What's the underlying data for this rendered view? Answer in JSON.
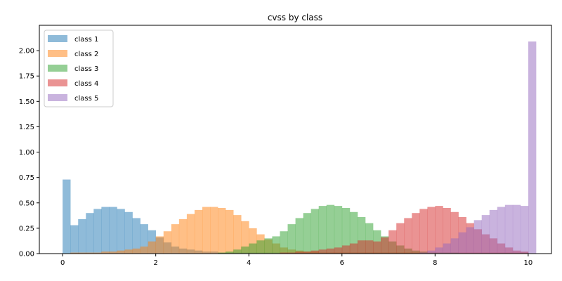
{
  "chart_data": {
    "type": "histogram",
    "title": "cvss by class",
    "xlabel": "",
    "ylabel": "",
    "xlim": [
      -0.5,
      10.5
    ],
    "ylim": [
      0,
      2.25
    ],
    "x_ticks": [
      0,
      2,
      4,
      6,
      8,
      10
    ],
    "y_ticks": [
      0.0,
      0.25,
      0.5,
      0.75,
      1.0,
      1.25,
      1.5,
      1.75,
      2.0
    ],
    "grid": false,
    "legend_position": "top-left",
    "bin_start": 0.0,
    "bin_width": 0.1667,
    "bar_alpha": 0.5,
    "series": [
      {
        "name": "class 1",
        "color": "#1f77b4",
        "values": [
          0.73,
          0.28,
          0.34,
          0.4,
          0.44,
          0.46,
          0.46,
          0.44,
          0.41,
          0.35,
          0.29,
          0.23,
          0.16,
          0.11,
          0.07,
          0.05,
          0.04,
          0.03,
          0.02,
          0.02,
          0.01,
          0.01,
          0.01,
          0.01,
          0.01,
          0.01,
          0.01,
          0.01,
          0.01,
          0.01,
          0.01,
          0.01,
          0.01,
          0.01,
          0.01,
          0.01,
          0.01,
          0.01,
          0.01,
          0.01,
          0.01,
          0.01,
          0.01,
          0.01,
          0.01,
          0.01,
          0.01,
          0.01,
          0.01,
          0.01,
          0.01,
          0.01,
          0.01,
          0.01,
          0.01,
          0.01,
          0.01,
          0.01,
          0.01,
          0.01
        ]
      },
      {
        "name": "class 2",
        "color": "#ff7f0e",
        "values": [
          0.0,
          0.01,
          0.01,
          0.01,
          0.01,
          0.02,
          0.02,
          0.03,
          0.04,
          0.05,
          0.07,
          0.12,
          0.17,
          0.22,
          0.29,
          0.34,
          0.39,
          0.43,
          0.46,
          0.46,
          0.45,
          0.43,
          0.38,
          0.32,
          0.25,
          0.19,
          0.14,
          0.1,
          0.06,
          0.04,
          0.03,
          0.02,
          0.02,
          0.01,
          0.01,
          0.01,
          0.01,
          0.01,
          0.01,
          0.01,
          0.01,
          0.01,
          0.01,
          0.01,
          0.01,
          0.01,
          0.01,
          0.01,
          0.01,
          0.01,
          0.01,
          0.01,
          0.01,
          0.01,
          0.01,
          0.01,
          0.01,
          0.01,
          0.01,
          0.01
        ]
      },
      {
        "name": "class 3",
        "color": "#2ca02c",
        "values": [
          0.0,
          0.0,
          0.0,
          0.0,
          0.0,
          0.0,
          0.0,
          0.0,
          0.0,
          0.0,
          0.0,
          0.0,
          0.0,
          0.0,
          0.0,
          0.0,
          0.0,
          0.0,
          0.0,
          0.0,
          0.01,
          0.02,
          0.04,
          0.07,
          0.1,
          0.13,
          0.15,
          0.17,
          0.22,
          0.29,
          0.35,
          0.4,
          0.44,
          0.47,
          0.48,
          0.47,
          0.45,
          0.41,
          0.36,
          0.3,
          0.23,
          0.17,
          0.12,
          0.08,
          0.05,
          0.03,
          0.02,
          0.01,
          0.01,
          0.01,
          0.01,
          0.0,
          0.0,
          0.0,
          0.0,
          0.0,
          0.0,
          0.0,
          0.0,
          0.0
        ]
      },
      {
        "name": "class 4",
        "color": "#d62728",
        "values": [
          0.0,
          0.0,
          0.0,
          0.0,
          0.0,
          0.0,
          0.0,
          0.0,
          0.0,
          0.0,
          0.0,
          0.0,
          0.0,
          0.0,
          0.0,
          0.0,
          0.0,
          0.0,
          0.0,
          0.0,
          0.0,
          0.0,
          0.0,
          0.0,
          0.0,
          0.0,
          0.0,
          0.0,
          0.01,
          0.01,
          0.02,
          0.02,
          0.03,
          0.04,
          0.05,
          0.06,
          0.08,
          0.1,
          0.13,
          0.13,
          0.12,
          0.16,
          0.23,
          0.3,
          0.35,
          0.4,
          0.44,
          0.46,
          0.47,
          0.45,
          0.41,
          0.36,
          0.3,
          0.24,
          0.19,
          0.15,
          0.1,
          0.06,
          0.03,
          0.02
        ]
      },
      {
        "name": "class 5",
        "color": "#9467bd",
        "values": [
          0.0,
          0.0,
          0.0,
          0.0,
          0.0,
          0.0,
          0.0,
          0.0,
          0.0,
          0.0,
          0.0,
          0.0,
          0.0,
          0.0,
          0.0,
          0.0,
          0.0,
          0.0,
          0.0,
          0.0,
          0.0,
          0.0,
          0.0,
          0.0,
          0.0,
          0.0,
          0.0,
          0.0,
          0.0,
          0.0,
          0.0,
          0.0,
          0.0,
          0.0,
          0.0,
          0.0,
          0.0,
          0.0,
          0.0,
          0.0,
          0.0,
          0.0,
          0.0,
          0.0,
          0.0,
          0.0,
          0.01,
          0.03,
          0.06,
          0.1,
          0.15,
          0.21,
          0.26,
          0.33,
          0.38,
          0.43,
          0.46,
          0.48,
          0.48,
          0.47,
          2.09
        ]
      }
    ]
  }
}
